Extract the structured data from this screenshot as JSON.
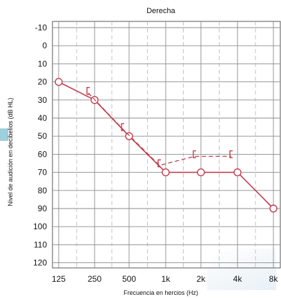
{
  "chart_data": {
    "type": "line",
    "title": "Derecha",
    "xlabel": "Frecuencia en hercios (Hz)",
    "ylabel": "Nivel de audición en decibelios (dB HL)",
    "categories": [
      "125",
      "250",
      "500",
      "1k",
      "2k",
      "4k",
      "8k"
    ],
    "y_ticks": [
      -10,
      0,
      10,
      20,
      30,
      40,
      50,
      60,
      70,
      80,
      90,
      100,
      110,
      120
    ],
    "ylim": [
      -10,
      120
    ],
    "y_inverted": true,
    "grid": true,
    "series": [
      {
        "marker": "circle",
        "line": "solid",
        "color": "#c23b4b",
        "x": [
          "125",
          "250",
          "500",
          "1k",
          "2k",
          "4k",
          "8k"
        ],
        "values": [
          20,
          30,
          50,
          70,
          70,
          70,
          90
        ]
      },
      {
        "marker": "bracket",
        "line": "dashed",
        "color": "#c23b4b",
        "x": [
          "250",
          "500",
          "1k",
          "2k",
          "4k"
        ],
        "values": [
          25,
          45,
          65,
          60,
          60
        ]
      }
    ]
  }
}
